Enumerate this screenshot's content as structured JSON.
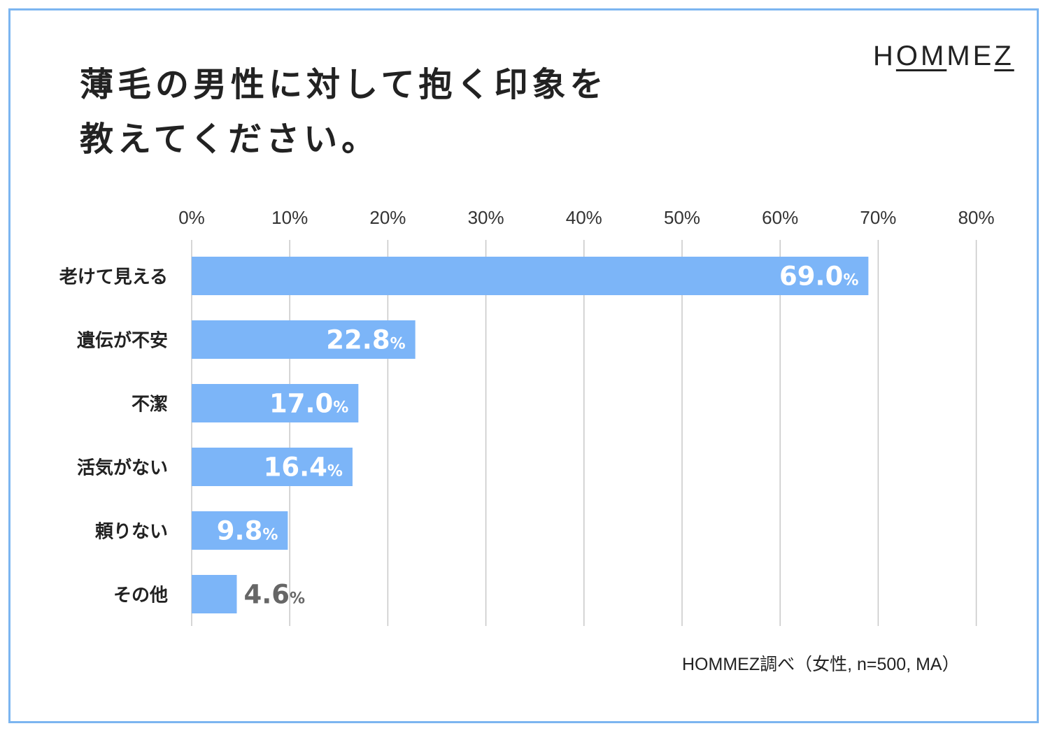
{
  "title_lines": [
    "薄毛の男性に対して抱く印象を",
    "教えてください。"
  ],
  "logo": {
    "prefix": "H",
    "underlined": "OM",
    "middle": "ME",
    "suffix": "Z"
  },
  "note": "HOMMEZ調べ（女性, n=500, MA）",
  "colors": {
    "bar": "#7cb5f8",
    "grid": "#c8c8c8",
    "label_inside": "#ffffff",
    "label_outside": "#666666",
    "frame": "#7cb5f0"
  },
  "chart_data": {
    "type": "bar",
    "orientation": "horizontal",
    "categories": [
      "老けて見える",
      "遺伝が不安",
      "不潔",
      "活気がない",
      "頼りない",
      "その他"
    ],
    "values": [
      69.0,
      22.8,
      17.0,
      16.4,
      9.8,
      4.6
    ],
    "value_labels": [
      "69.0",
      "22.8",
      "17.0",
      "16.4",
      "9.8",
      "4.6"
    ],
    "value_suffix": "%",
    "xlim": [
      0,
      80
    ],
    "xticks": [
      "0%",
      "10%",
      "20%",
      "30%",
      "40%",
      "50%",
      "60%",
      "70%",
      "80%"
    ],
    "grid": true,
    "axis_position": "top"
  }
}
